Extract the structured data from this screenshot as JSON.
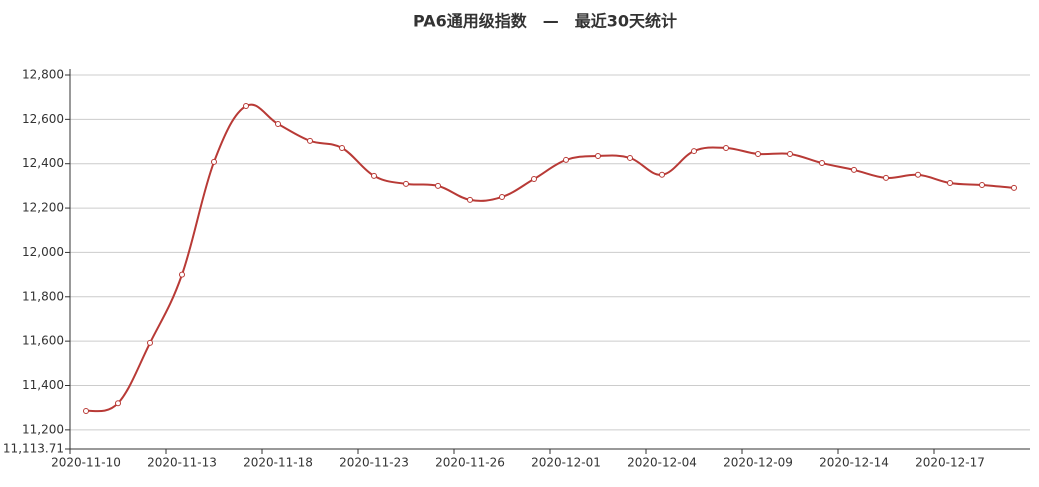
{
  "chart_data": {
    "type": "line",
    "title": "PA6通用级指数　—　最近30天统计",
    "categories": [
      "2020-11-10",
      null,
      null,
      "2020-11-13",
      null,
      null,
      "2020-11-18",
      null,
      null,
      "2020-11-23",
      null,
      null,
      "2020-11-26",
      null,
      null,
      "2020-12-01",
      null,
      null,
      "2020-12-04",
      null,
      null,
      "2020-12-09",
      null,
      null,
      "2020-12-14",
      null,
      null,
      "2020-12-17",
      null,
      null
    ],
    "series": [
      {
        "color": "#b83a36",
        "values": [
          11285,
          11320,
          11592,
          11900,
          12408,
          12660,
          12579,
          12503,
          12471,
          12345,
          12309,
          12300,
          12237,
          12250,
          12331,
          12417,
          12435,
          12426,
          12350,
          12457,
          12471,
          12444,
          12444,
          12403,
          12372,
          12336,
          12350,
          12313,
          12304,
          12291
        ]
      }
    ],
    "ylim": [
      11113.71,
      12827
    ],
    "yticks": [
      {
        "value": 11113.71,
        "label": "11,113.71"
      },
      {
        "value": 11200,
        "label": "11,200"
      },
      {
        "value": 11400,
        "label": "11,400"
      },
      {
        "value": 11600,
        "label": "11,600"
      },
      {
        "value": 11800,
        "label": "11,800"
      },
      {
        "value": 12000,
        "label": "12,000"
      },
      {
        "value": 12200,
        "label": "12,200"
      },
      {
        "value": 12400,
        "label": "12,400"
      },
      {
        "value": 12600,
        "label": "12,600"
      },
      {
        "value": 12800,
        "label": "12,800"
      }
    ],
    "grid": true
  }
}
